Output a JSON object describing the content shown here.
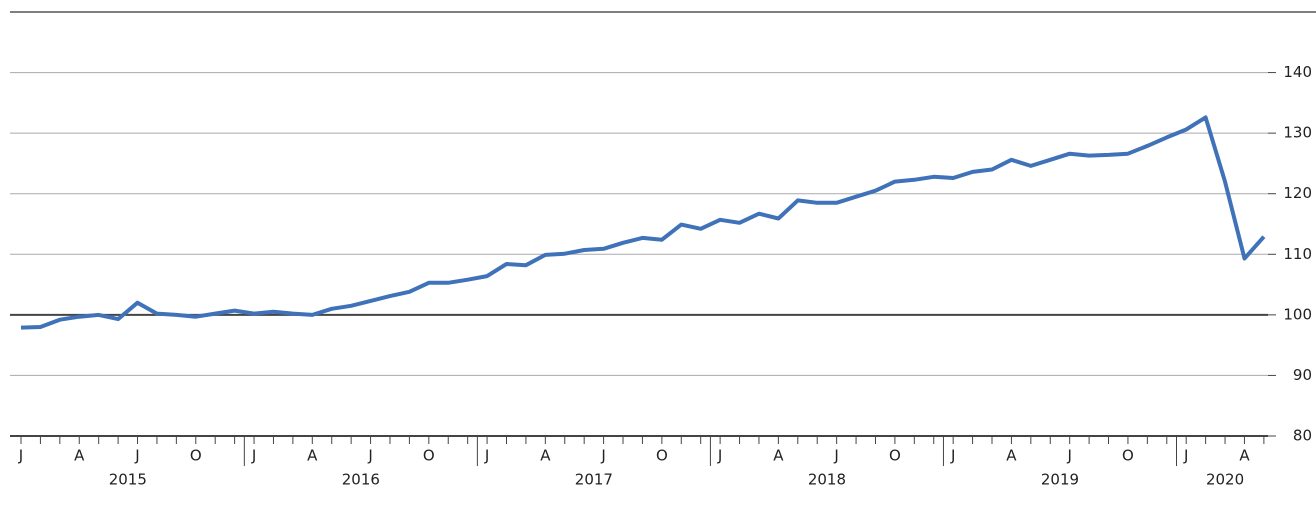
{
  "chart_data": {
    "type": "line",
    "categories": [
      "J",
      null,
      null,
      "A",
      null,
      null,
      "J",
      null,
      null,
      "O",
      null,
      null,
      "J",
      null,
      null,
      "A",
      null,
      null,
      "J",
      null,
      null,
      "O",
      null,
      null,
      "J",
      null,
      null,
      "A",
      null,
      null,
      "J",
      null,
      null,
      "O",
      null,
      null,
      "J",
      null,
      null,
      "A",
      null,
      null,
      "J",
      null,
      null,
      "O",
      null,
      null,
      "J",
      null,
      null,
      "A",
      null,
      null,
      "J",
      null,
      null,
      "O",
      null,
      null,
      "J",
      null,
      null,
      "A",
      null
    ],
    "years": [
      "2015",
      "2016",
      "2017",
      "2018",
      "2019",
      "2020"
    ],
    "series": [
      {
        "color": "#3f72b8",
        "values": [
          97.9,
          98.0,
          99.2,
          99.7,
          100.0,
          99.3,
          102.0,
          100.2,
          100.0,
          99.7,
          100.2,
          100.7,
          100.2,
          100.5,
          100.2,
          100.0,
          101.0,
          101.5,
          102.3,
          103.1,
          103.8,
          105.3,
          105.3,
          105.8,
          106.4,
          108.4,
          108.2,
          109.9,
          110.1,
          110.7,
          110.9,
          111.9,
          112.7,
          112.4,
          114.9,
          114.2,
          115.7,
          115.2,
          116.7,
          115.9,
          118.9,
          118.5,
          118.5,
          119.5,
          120.5,
          122.0,
          122.3,
          122.8,
          122.6,
          123.6,
          124.0,
          125.6,
          124.6,
          125.6,
          126.6,
          126.3,
          126.4,
          126.6,
          127.9,
          129.3,
          130.6,
          132.6,
          122.0,
          109.3,
          112.9
        ]
      }
    ],
    "ylim": [
      80,
      150
    ],
    "yticks": [
      80,
      90,
      100,
      110,
      120,
      130,
      140
    ],
    "grid": true,
    "reference": 100
  }
}
